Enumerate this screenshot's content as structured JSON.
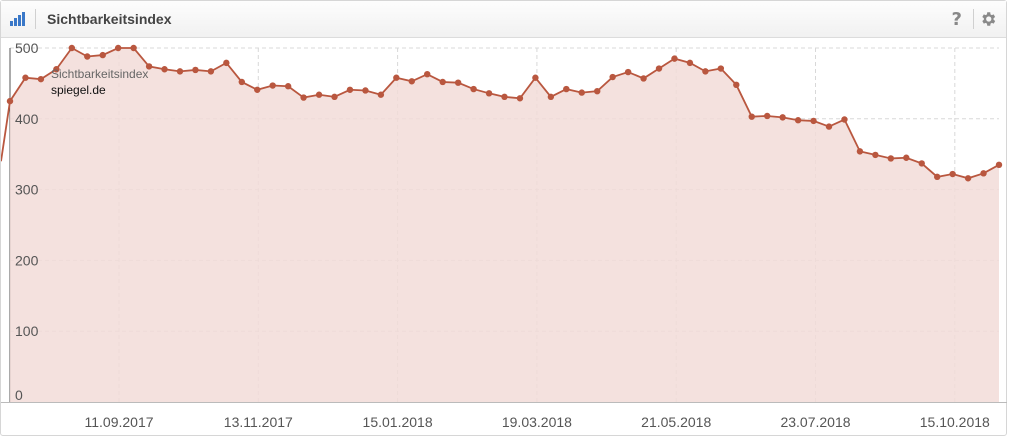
{
  "widget": {
    "title": "Sichtbarkeitsindex",
    "help_label": "?",
    "icons": {
      "chart": "bar-chart-icon",
      "help": "question-icon",
      "settings": "gear-icon"
    }
  },
  "colors": {
    "line": "#b9573f",
    "fill": "#f2dcd8",
    "grid": "#d8d8d8"
  },
  "chart_data": {
    "type": "area",
    "series_label": "Sichtbarkeitsindex",
    "domain": "spiegel.de",
    "ylim": [
      0,
      500
    ],
    "yticks": [
      0,
      100,
      200,
      300,
      400,
      500
    ],
    "x_tick_labels": [
      "11.09.2017",
      "13.11.2017",
      "15.01.2018",
      "19.03.2018",
      "21.05.2018",
      "23.07.2018",
      "15.10.2018"
    ],
    "grid": true,
    "values": [
      425,
      458,
      456,
      470,
      500,
      488,
      490,
      500,
      500,
      474,
      470,
      467,
      469,
      467,
      479,
      452,
      441,
      447,
      446,
      430,
      434,
      431,
      441,
      440,
      434,
      458,
      453,
      463,
      452,
      451,
      442,
      436,
      431,
      429,
      458,
      431,
      442,
      437,
      439,
      459,
      466,
      457,
      471,
      485,
      479,
      467,
      471,
      448,
      403,
      404,
      402,
      398,
      397,
      389,
      399,
      354,
      349,
      344,
      345,
      337,
      318,
      322,
      316,
      323,
      335
    ]
  }
}
